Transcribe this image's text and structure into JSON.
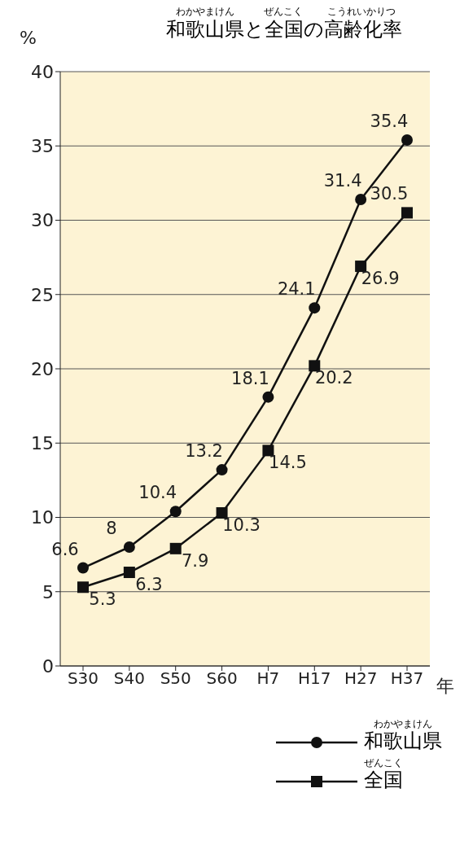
{
  "chart_data": {
    "type": "line",
    "title": "和歌山県と全国の高齢化率",
    "ylabel": "%",
    "xlabel": "年",
    "categories": [
      "S30",
      "S40",
      "S50",
      "S60",
      "H7",
      "H17",
      "H27",
      "H37"
    ],
    "series": [
      {
        "name": "和歌山県",
        "color": "#111111",
        "marker": "circle",
        "values": [
          6.6,
          8,
          10.4,
          13.2,
          18.1,
          24.1,
          31.4,
          35.4
        ]
      },
      {
        "name": "全国",
        "color": "#111111",
        "marker": "square",
        "values": [
          5.3,
          6.3,
          7.9,
          10.3,
          14.5,
          20.2,
          26.9,
          30.5
        ]
      }
    ],
    "ylim": [
      0,
      40
    ],
    "yticks": [
      0,
      5,
      10,
      15,
      20,
      25,
      30,
      35,
      40
    ],
    "grid": "y",
    "legend": "bottom right",
    "data_labels": true,
    "line_style": "solid",
    "annotations": [
      "わかやまけん",
      "ぜんこく",
      "こうれいかりつ",
      "わかやまけん",
      "ぜんこく"
    ]
  }
}
